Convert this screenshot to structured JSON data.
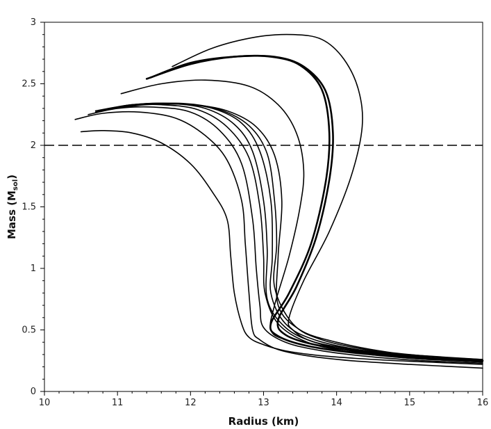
{
  "chart_data": {
    "type": "line",
    "xlabel": "Radius (km)",
    "ylabel_main": "Mass (M",
    "ylabel_sub": "sol",
    "ylabel_end": ")",
    "xlim": [
      10,
      16
    ],
    "ylim": [
      0,
      3
    ],
    "xticks": [
      "10",
      "11",
      "12",
      "13",
      "14",
      "15",
      "16"
    ],
    "yticks": [
      "0",
      "0.5",
      "1",
      "1.5",
      "2",
      "2.5",
      "3"
    ],
    "reference_line": {
      "y": 2,
      "style": "dashed"
    },
    "grid": false,
    "legend": "none",
    "line_color": "#000000",
    "series": [
      {
        "x": [
          10.5,
          10.8,
          11.2,
          11.6,
          12.0,
          12.3,
          12.5,
          12.55,
          12.6,
          12.7,
          12.8,
          13.0,
          13.3,
          13.8,
          14.5,
          15.2,
          16.0
        ],
        "y": [
          2.11,
          2.12,
          2.1,
          2.02,
          1.85,
          1.62,
          1.4,
          1.1,
          0.8,
          0.55,
          0.44,
          0.38,
          0.33,
          0.29,
          0.26,
          0.24,
          0.22
        ]
      },
      {
        "x": [
          10.42,
          10.8,
          11.3,
          11.8,
          12.2,
          12.5,
          12.7,
          12.75,
          12.8,
          12.85,
          12.95,
          13.2,
          13.6,
          14.2,
          15.0,
          16.0
        ],
        "y": [
          2.21,
          2.26,
          2.27,
          2.22,
          2.08,
          1.88,
          1.55,
          1.2,
          0.8,
          0.5,
          0.42,
          0.34,
          0.29,
          0.25,
          0.22,
          0.19
        ]
      },
      {
        "x": [
          10.6,
          11.0,
          11.5,
          12.0,
          12.4,
          12.7,
          12.85,
          12.9,
          12.95,
          13.0,
          13.3,
          13.8,
          14.5,
          15.2,
          16.0
        ],
        "y": [
          2.25,
          2.3,
          2.31,
          2.27,
          2.12,
          1.85,
          1.4,
          1.0,
          0.7,
          0.52,
          0.4,
          0.33,
          0.28,
          0.25,
          0.23
        ]
      },
      {
        "x": [
          10.7,
          11.1,
          11.6,
          12.1,
          12.5,
          12.8,
          12.95,
          13.0,
          13.02,
          13.2,
          13.6,
          14.2,
          15.0,
          16.0
        ],
        "y": [
          2.27,
          2.32,
          2.33,
          2.29,
          2.15,
          1.9,
          1.5,
          1.1,
          0.8,
          0.55,
          0.4,
          0.32,
          0.27,
          0.24
        ]
      },
      {
        "x": [
          10.7,
          11.2,
          11.7,
          12.2,
          12.6,
          12.85,
          13.0,
          13.05,
          13.05,
          13.3,
          13.7,
          14.3,
          15.0,
          16.0
        ],
        "y": [
          2.28,
          2.33,
          2.34,
          2.3,
          2.17,
          1.95,
          1.55,
          1.15,
          0.75,
          0.52,
          0.4,
          0.32,
          0.27,
          0.24
        ]
      },
      {
        "x": [
          10.75,
          11.2,
          11.8,
          12.3,
          12.7,
          12.95,
          13.1,
          13.12,
          13.1,
          13.3,
          13.7,
          14.4,
          15.2,
          16.0
        ],
        "y": [
          2.28,
          2.33,
          2.34,
          2.3,
          2.18,
          1.95,
          1.55,
          1.1,
          0.8,
          0.55,
          0.42,
          0.33,
          0.28,
          0.25
        ]
      },
      {
        "x": [
          10.8,
          11.3,
          11.9,
          12.4,
          12.8,
          13.05,
          13.15,
          13.18,
          13.15,
          13.4,
          13.8,
          14.5,
          15.2,
          16.0
        ],
        "y": [
          2.29,
          2.33,
          2.34,
          2.29,
          2.16,
          1.93,
          1.55,
          1.2,
          0.85,
          0.55,
          0.42,
          0.33,
          0.28,
          0.25
        ]
      },
      {
        "x": [
          10.85,
          11.4,
          12.0,
          12.5,
          12.9,
          13.15,
          13.25,
          13.2,
          13.2,
          13.5,
          14.0,
          14.7,
          15.4,
          16.0
        ],
        "y": [
          2.29,
          2.33,
          2.33,
          2.28,
          2.15,
          1.92,
          1.55,
          1.1,
          0.7,
          0.5,
          0.4,
          0.32,
          0.28,
          0.26
        ]
      },
      {
        "x": [
          11.05,
          11.6,
          12.2,
          12.8,
          13.2,
          13.45,
          13.55,
          13.5,
          13.35,
          13.15,
          13.1,
          13.3,
          13.8,
          14.6,
          15.4,
          16.0
        ],
        "y": [
          2.42,
          2.5,
          2.53,
          2.48,
          2.33,
          2.1,
          1.8,
          1.5,
          1.1,
          0.7,
          0.5,
          0.42,
          0.35,
          0.3,
          0.27,
          0.25
        ]
      },
      {
        "x": [
          11.4,
          12.0,
          12.6,
          13.1,
          13.5,
          13.8,
          13.9,
          13.85,
          13.65,
          13.35,
          13.1,
          13.2,
          13.6,
          14.3,
          15.0,
          16.0
        ],
        "y": [
          2.54,
          2.66,
          2.72,
          2.72,
          2.65,
          2.45,
          2.1,
          1.7,
          1.2,
          0.8,
          0.55,
          0.45,
          0.37,
          0.31,
          0.28,
          0.25
        ]
      },
      {
        "x": [
          11.45,
          12.0,
          12.6,
          13.15,
          13.55,
          13.85,
          13.95,
          13.9,
          13.72,
          13.45,
          13.2,
          13.3,
          13.7,
          14.4,
          15.1,
          16.0
        ],
        "y": [
          2.55,
          2.67,
          2.72,
          2.72,
          2.64,
          2.44,
          2.1,
          1.72,
          1.25,
          0.85,
          0.58,
          0.46,
          0.38,
          0.32,
          0.28,
          0.25
        ]
      },
      {
        "x": [
          11.75,
          12.3,
          12.9,
          13.4,
          13.8,
          14.1,
          14.3,
          14.35,
          14.2,
          13.9,
          13.55,
          13.35,
          13.4,
          13.7,
          14.4,
          15.2,
          16.0
        ],
        "y": [
          2.64,
          2.79,
          2.88,
          2.9,
          2.86,
          2.7,
          2.45,
          2.15,
          1.75,
          1.3,
          0.9,
          0.6,
          0.5,
          0.4,
          0.33,
          0.29,
          0.26
        ]
      }
    ]
  }
}
